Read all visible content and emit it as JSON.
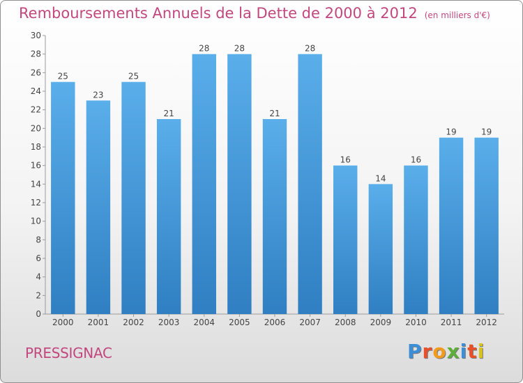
{
  "chart_data": {
    "type": "bar",
    "title": "Remboursements Annuels de la Dette de 2000 à 2012",
    "subtitle": "(en milliers d'€)",
    "categories": [
      "2000",
      "2001",
      "2002",
      "2003",
      "2004",
      "2005",
      "2006",
      "2007",
      "2008",
      "2009",
      "2010",
      "2011",
      "2012"
    ],
    "values": [
      25,
      23,
      25,
      21,
      28,
      28,
      21,
      28,
      16,
      14,
      16,
      19,
      19
    ],
    "ylim": [
      0,
      30
    ],
    "yticks": [
      0,
      2,
      4,
      6,
      8,
      10,
      12,
      14,
      16,
      18,
      20,
      22,
      24,
      26,
      28,
      30
    ],
    "grid": false,
    "bar_color_top": "#5aaeea",
    "bar_color_bottom": "#2f7fc2",
    "title_color": "#c2477f"
  },
  "footer": {
    "town_name": "PRESSIGNAC",
    "brand_letters": [
      "P",
      "r",
      "o",
      "x",
      "i",
      "t",
      "i"
    ]
  }
}
